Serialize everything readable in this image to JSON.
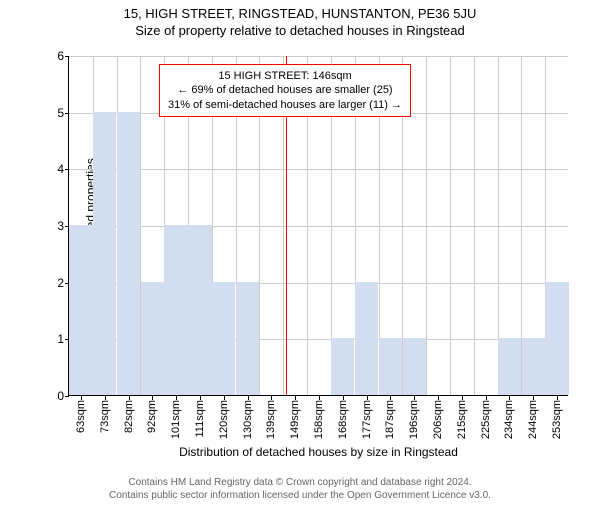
{
  "header": {
    "address": "15, HIGH STREET, RINGSTEAD, HUNSTANTON, PE36 5JU",
    "subtitle": "Size of property relative to detached houses in Ringstead"
  },
  "chart": {
    "type": "histogram",
    "ylabel": "Number of detached properties",
    "xlabel": "Distribution of detached houses by size in Ringstead",
    "ylim": [
      0,
      6
    ],
    "ytick_step": 1,
    "categories": [
      "63sqm",
      "73sqm",
      "82sqm",
      "92sqm",
      "101sqm",
      "111sqm",
      "120sqm",
      "130sqm",
      "139sqm",
      "149sqm",
      "158sqm",
      "168sqm",
      "177sqm",
      "187sqm",
      "196sqm",
      "206sqm",
      "215sqm",
      "225sqm",
      "234sqm",
      "244sqm",
      "253sqm"
    ],
    "values": [
      3,
      5,
      5,
      2,
      3,
      3,
      2,
      2,
      0,
      0,
      0,
      1,
      2,
      1,
      1,
      0,
      0,
      0,
      1,
      1,
      2
    ],
    "bar_color": "#d2ddf0",
    "grid_color": "#cccccc",
    "background_color": "#ffffff",
    "reference": {
      "position_index": 9.1,
      "line_color": "#ff0000",
      "box_border_color": "#ff0000",
      "lines": [
        "15 HIGH STREET: 146sqm",
        "← 69% of detached houses are smaller (25)",
        "31% of semi-detached houses are larger (11) →"
      ]
    }
  },
  "footer": {
    "line1": "Contains HM Land Registry data © Crown copyright and database right 2024.",
    "line2": "Contains public sector information licensed under the Open Government Licence v3.0.",
    "color": "#666666"
  }
}
